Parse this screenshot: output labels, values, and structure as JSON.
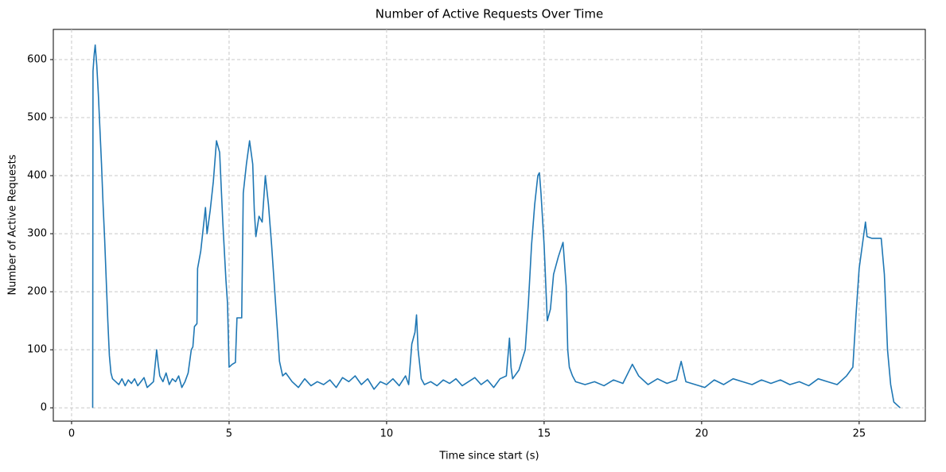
{
  "chart_data": {
    "type": "line",
    "title": "Number of Active Requests Over Time",
    "x_label": "Time since start (s)",
    "y_label": "Number of Active Requests",
    "x": [
      0.67,
      0.68,
      0.72,
      0.75,
      0.8,
      0.85,
      0.9,
      0.95,
      1.0,
      1.05,
      1.1,
      1.15,
      1.2,
      1.25,
      1.3,
      1.4,
      1.5,
      1.6,
      1.7,
      1.8,
      1.9,
      2.0,
      2.1,
      2.2,
      2.3,
      2.4,
      2.5,
      2.6,
      2.7,
      2.75,
      2.8,
      2.9,
      3.0,
      3.1,
      3.2,
      3.3,
      3.4,
      3.5,
      3.6,
      3.7,
      3.8,
      3.85,
      3.9,
      3.98,
      4.0,
      4.1,
      4.2,
      4.25,
      4.3,
      4.4,
      4.5,
      4.6,
      4.7,
      4.8,
      4.9,
      4.95,
      5.0,
      5.1,
      5.2,
      5.25,
      5.4,
      5.45,
      5.55,
      5.65,
      5.75,
      5.8,
      5.85,
      5.95,
      6.05,
      6.15,
      6.25,
      6.35,
      6.45,
      6.55,
      6.6,
      6.7,
      6.8,
      7.0,
      7.2,
      7.4,
      7.6,
      7.8,
      8.0,
      8.2,
      8.4,
      8.6,
      8.8,
      9.0,
      9.2,
      9.4,
      9.6,
      9.8,
      10.0,
      10.2,
      10.4,
      10.6,
      10.7,
      10.8,
      10.9,
      10.95,
      11.0,
      11.1,
      11.2,
      11.4,
      11.6,
      11.8,
      12.0,
      12.2,
      12.4,
      12.6,
      12.8,
      13.0,
      13.2,
      13.4,
      13.6,
      13.8,
      13.9,
      13.95,
      14.0,
      14.2,
      14.4,
      14.5,
      14.6,
      14.7,
      14.8,
      14.85,
      14.9,
      15.0,
      15.1,
      15.2,
      15.3,
      15.45,
      15.6,
      15.7,
      15.75,
      15.8,
      15.9,
      16.0,
      16.3,
      16.6,
      16.9,
      17.2,
      17.5,
      17.8,
      18.0,
      18.3,
      18.6,
      18.9,
      19.2,
      19.35,
      19.5,
      19.8,
      20.1,
      20.4,
      20.7,
      21.0,
      21.3,
      21.6,
      21.9,
      22.2,
      22.5,
      22.8,
      23.1,
      23.4,
      23.7,
      24.0,
      24.3,
      24.6,
      24.8,
      24.9,
      25.0,
      25.1,
      25.2,
      25.25,
      25.4,
      25.6,
      25.7,
      25.8,
      25.9,
      26.0,
      26.1,
      26.3
    ],
    "series": [
      {
        "name": "Active requests",
        "color": "#1f77b4",
        "values": [
          0,
          580,
          610,
          625,
          590,
          540,
          480,
          420,
          350,
          290,
          220,
          150,
          90,
          60,
          50,
          45,
          40,
          50,
          38,
          48,
          42,
          50,
          38,
          45,
          52,
          35,
          40,
          45,
          100,
          75,
          55,
          45,
          60,
          40,
          50,
          45,
          55,
          35,
          45,
          60,
          100,
          105,
          140,
          145,
          240,
          270,
          320,
          345,
          300,
          340,
          390,
          460,
          440,
          320,
          220,
          180,
          70,
          75,
          78,
          155,
          155,
          370,
          420,
          460,
          420,
          340,
          295,
          330,
          320,
          400,
          350,
          280,
          200,
          120,
          80,
          55,
          60,
          45,
          35,
          50,
          38,
          45,
          40,
          48,
          35,
          52,
          45,
          55,
          40,
          50,
          32,
          45,
          40,
          50,
          38,
          55,
          40,
          110,
          130,
          160,
          100,
          50,
          40,
          45,
          38,
          48,
          42,
          50,
          38,
          45,
          52,
          40,
          48,
          35,
          50,
          55,
          120,
          70,
          50,
          65,
          100,
          180,
          280,
          350,
          400,
          405,
          370,
          280,
          150,
          170,
          230,
          260,
          285,
          210,
          100,
          70,
          55,
          45,
          40,
          45,
          38,
          48,
          42,
          75,
          55,
          40,
          50,
          42,
          48,
          80,
          45,
          40,
          35,
          48,
          40,
          50,
          45,
          40,
          48,
          42,
          48,
          40,
          45,
          38,
          50,
          45,
          40,
          55,
          70,
          160,
          240,
          280,
          320,
          295,
          292,
          292,
          292,
          230,
          100,
          40,
          10,
          0
        ]
      }
    ],
    "xlim": [
      -0.58,
      27.1
    ],
    "ylim": [
      -23,
      652
    ],
    "xticks": [
      0,
      5,
      10,
      15,
      20,
      25
    ],
    "yticks": [
      0,
      100,
      200,
      300,
      400,
      500,
      600
    ],
    "grid": true
  }
}
